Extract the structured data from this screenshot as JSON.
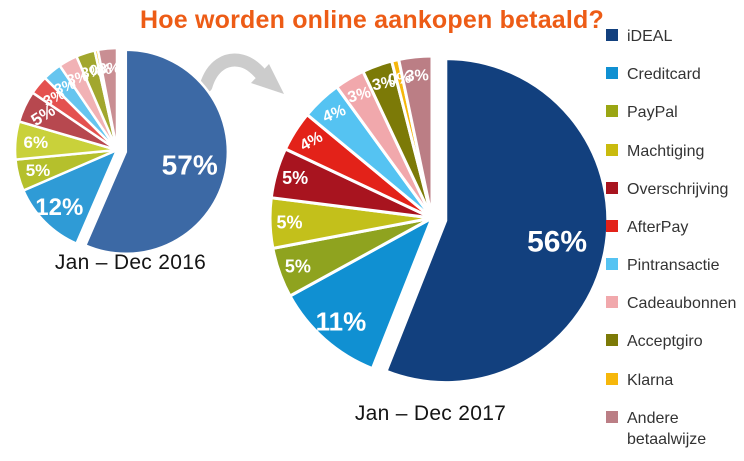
{
  "title": {
    "text": "Hoe worden online aankopen betaald?",
    "color": "#ed5c16"
  },
  "colors": {
    "background": "#ffffff",
    "arrow": "#cccccc",
    "slice_gap": "#ffffff",
    "label_text": "#ffffff"
  },
  "legend": {
    "position": "right",
    "items": [
      {
        "name": "ideal",
        "label": "iDEAL",
        "color": "#12407e"
      },
      {
        "name": "creditcard",
        "label": "Creditcard",
        "color": "#1090d2"
      },
      {
        "name": "paypal",
        "label": "PayPal",
        "color": "#9aa613"
      },
      {
        "name": "machtiging",
        "label": "Machtiging",
        "color": "#c9bb0e"
      },
      {
        "name": "overschrijving",
        "label": "Overschrijving",
        "color": "#a8141f"
      },
      {
        "name": "afterpay",
        "label": "AfterPay",
        "color": "#e32219"
      },
      {
        "name": "pintransactie",
        "label": "Pintransactie",
        "color": "#55c3f2"
      },
      {
        "name": "cadeaubonnen",
        "label": "Cadeaubonnen",
        "color": "#f1a8ac"
      },
      {
        "name": "acceptgiro",
        "label": "Acceptgiro",
        "color": "#7c7a07"
      },
      {
        "name": "klarna",
        "label": "Klarna",
        "color": "#f6b70b"
      },
      {
        "name": "andere",
        "label": "Andere\nbetaalwijze",
        "color": "#bb7e85"
      }
    ]
  },
  "chart_data": [
    {
      "type": "pie",
      "title": "Jan – Dec 2016",
      "unit": "%",
      "direction": "clockwise",
      "start_angle_deg": 0,
      "exploded_slice": "iDEAL",
      "slices": [
        {
          "name": "iDEAL",
          "label": "57%",
          "value": 57,
          "sweep": 56.5,
          "color": "#3c69a5"
        },
        {
          "name": "Creditcard",
          "label": "12%",
          "value": 12,
          "sweep": 12,
          "color": "#2f9bd6"
        },
        {
          "name": "PayPal",
          "label": "5%",
          "value": 5,
          "sweep": 5,
          "color": "#b5c02c"
        },
        {
          "name": "Machtiging",
          "label": "6%",
          "value": 6,
          "sweep": 6,
          "color": "#c9d13a"
        },
        {
          "name": "Overschrijving",
          "label": "5%",
          "value": 5,
          "sweep": 5,
          "color": "#b7484f"
        },
        {
          "name": "AfterPay",
          "label": "3%",
          "value": 3,
          "sweep": 3,
          "color": "#e4514f"
        },
        {
          "name": "Pintransactie",
          "label": "3%",
          "value": 3,
          "sweep": 3,
          "color": "#66c5ef"
        },
        {
          "name": "Cadeaubonnen",
          "label": "3%",
          "value": 3,
          "sweep": 3,
          "color": "#f1b2b5"
        },
        {
          "name": "Acceptgiro",
          "label": "3%",
          "value": 3,
          "sweep": 3,
          "color": "#a2a72e"
        },
        {
          "name": "Klarna",
          "label": "0%",
          "value": 0,
          "sweep": 0.5,
          "color": "#f6c42d"
        },
        {
          "name": "Andere betaalwijze",
          "label": "3%",
          "value": 3,
          "sweep": 3,
          "color": "#c98e93"
        }
      ]
    },
    {
      "type": "pie",
      "title": "Jan – Dec 2017",
      "unit": "%",
      "direction": "clockwise",
      "start_angle_deg": 0,
      "exploded_slice": "iDEAL",
      "slices": [
        {
          "name": "iDEAL",
          "label": "56%",
          "value": 56,
          "sweep": 56,
          "color": "#12407e"
        },
        {
          "name": "Creditcard",
          "label": "11%",
          "value": 11,
          "sweep": 11,
          "color": "#1090d2"
        },
        {
          "name": "PayPal",
          "label": "5%",
          "value": 5,
          "sweep": 5,
          "color": "#8fa31f"
        },
        {
          "name": "Machtiging",
          "label": "5%",
          "value": 5,
          "sweep": 5,
          "color": "#c3c01b"
        },
        {
          "name": "Overschrijving",
          "label": "5%",
          "value": 5,
          "sweep": 5,
          "color": "#a8141f"
        },
        {
          "name": "AfterPay",
          "label": "4%",
          "value": 4,
          "sweep": 4,
          "color": "#e32219"
        },
        {
          "name": "Pintransactie",
          "label": "4%",
          "value": 4,
          "sweep": 4,
          "color": "#55c3f2"
        },
        {
          "name": "Cadeaubonnen",
          "label": "3%",
          "value": 3,
          "sweep": 3,
          "color": "#f1a8ac"
        },
        {
          "name": "Acceptgiro",
          "label": "3%",
          "value": 3,
          "sweep": 3,
          "color": "#7c7a07"
        },
        {
          "name": "Klarna",
          "label": "0%",
          "value": 0,
          "sweep": 0.7,
          "color": "#f6b70b"
        },
        {
          "name": "Andere betaalwijze",
          "label": "3%",
          "value": 3,
          "sweep": 3.3,
          "color": "#bb7e85"
        }
      ]
    }
  ]
}
